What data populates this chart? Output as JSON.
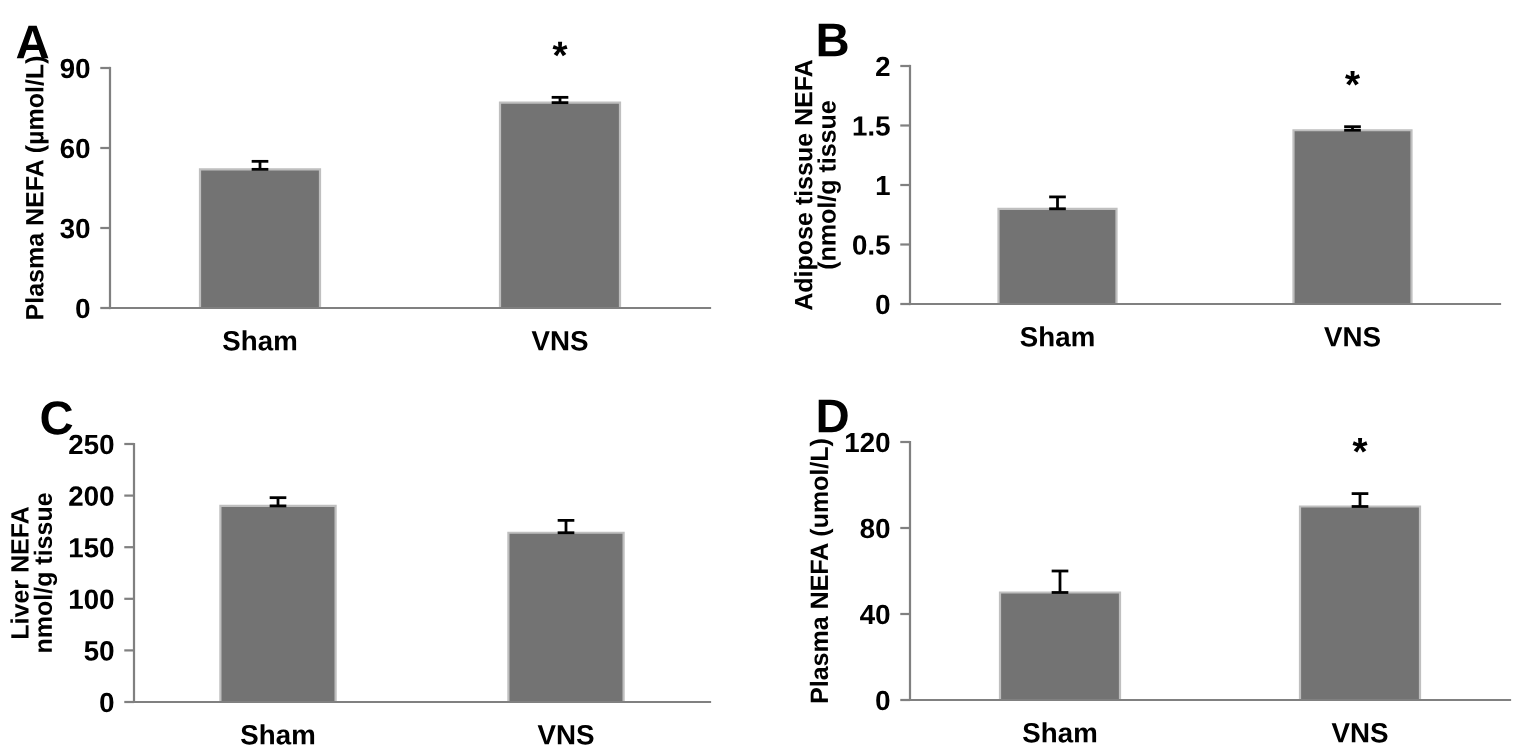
{
  "chart_data": [
    {
      "type": "bar",
      "title": "A",
      "ylabel": "Plasma NEFA (µmol/L)",
      "categories": [
        "Sham",
        "VNS"
      ],
      "values": [
        52,
        77
      ],
      "errors": [
        [
          52,
          55
        ],
        [
          77,
          79
        ]
      ],
      "color": "#737373",
      "ylim": [
        0,
        90
      ],
      "yticks": [
        0,
        30,
        60,
        90
      ],
      "grid": false,
      "annotations": [
        "*"
      ]
    },
    {
      "type": "bar",
      "title": "B",
      "ylabel": "Adipose tissue NEFA\n(nmol/g tissue",
      "categories": [
        "Sham",
        "VNS"
      ],
      "values": [
        0.8,
        1.46
      ],
      "errors": [
        [
          0.8,
          0.9
        ],
        [
          1.46,
          1.49
        ]
      ],
      "color": "#737373",
      "ylim": [
        0,
        2
      ],
      "yticks": [
        0,
        0.5,
        1,
        1.5,
        2
      ],
      "grid": false,
      "annotations": [
        "*"
      ]
    },
    {
      "type": "bar",
      "title": "C",
      "ylabel": "Liver NEFA\nnmol/g tissue",
      "categories": [
        "Sham",
        "VNS"
      ],
      "values": [
        190,
        164
      ],
      "errors": [
        [
          190,
          198
        ],
        [
          164,
          176
        ]
      ],
      "color": "#737373",
      "ylim": [
        0,
        250
      ],
      "yticks": [
        0,
        50,
        100,
        150,
        200,
        250
      ],
      "grid": false
    },
    {
      "type": "bar",
      "title": "D",
      "ylabel": "Plasma NEFA (umol/L)",
      "categories": [
        "Sham",
        "VNS"
      ],
      "values": [
        50,
        90
      ],
      "errors": [
        [
          50,
          60
        ],
        [
          90,
          96
        ]
      ],
      "color": "#737373",
      "ylim": [
        0,
        120
      ],
      "yticks": [
        0,
        40,
        80,
        120
      ],
      "grid": false,
      "annotations": [
        "*"
      ]
    }
  ]
}
